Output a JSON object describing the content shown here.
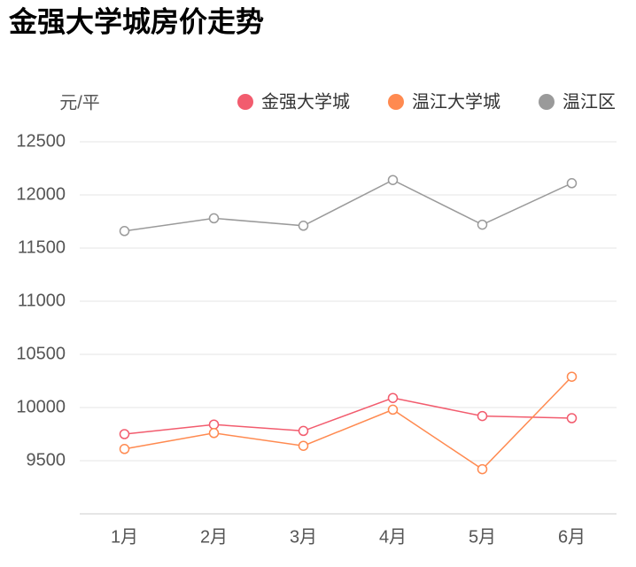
{
  "chart_data": {
    "type": "line",
    "title": "金强大学城房价走势",
    "y_label": "元/平",
    "categories": [
      "1月",
      "2月",
      "3月",
      "4月",
      "5月",
      "6月"
    ],
    "series": [
      {
        "name": "金强大学城",
        "color": "#f25c6e",
        "values": [
          9750,
          9840,
          9780,
          10090,
          9920,
          9900
        ]
      },
      {
        "name": "温江大学城",
        "color": "#ff8a50",
        "values": [
          9610,
          9760,
          9640,
          9980,
          9420,
          10290
        ]
      },
      {
        "name": "温江区",
        "color": "#9a9a9a",
        "values": [
          11660,
          11780,
          11710,
          12140,
          11720,
          12110
        ]
      }
    ],
    "ylim": [
      9000,
      12500
    ],
    "yticks": [
      9500,
      10000,
      10500,
      11000,
      11500,
      12000,
      12500
    ],
    "grid": true,
    "legend": "top-right"
  }
}
